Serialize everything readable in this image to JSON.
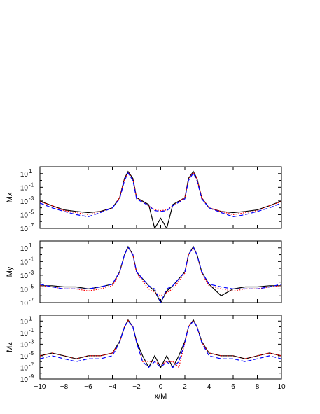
{
  "chart_data": {
    "type": "line",
    "x_range": [
      -10,
      10
    ],
    "x_ticks": [
      "−10",
      "−8",
      "−6",
      "−4",
      "−2",
      "0",
      "2",
      "4",
      "6",
      "8",
      "10"
    ],
    "xlabel": "x/M",
    "log_y": true,
    "series_styles": [
      {
        "color": "#000000",
        "dash": "solid"
      },
      {
        "color": "#ff0000",
        "dash": "dotted"
      },
      {
        "color": "#0000ff",
        "dash": "dashed"
      }
    ],
    "panels": [
      {
        "ylabel": "Mx",
        "ylim_log10": [
          -7,
          2
        ],
        "y_ticks": [
          {
            "exp": 1,
            "base": "10",
            "sup": "1"
          },
          {
            "exp": -1,
            "base": "10",
            "sup": "-1"
          },
          {
            "exp": -3,
            "base": "10",
            "sup": "-3"
          },
          {
            "exp": -5,
            "base": "10",
            "sup": "-5"
          },
          {
            "exp": -7,
            "base": "10",
            "sup": "-7"
          }
        ],
        "x": [
          -10,
          -9,
          -8,
          -7,
          -6,
          -5,
          -4,
          -3.4,
          -3,
          -2.7,
          -2.3,
          -2,
          -1,
          -0.5,
          0,
          0.5,
          1,
          2,
          2.3,
          2.7,
          3,
          3.4,
          4,
          5,
          6,
          7,
          8,
          9,
          10
        ],
        "series": [
          {
            "values": [
              0.001,
              0.0002,
              5e-05,
              3e-05,
              2e-05,
              3e-05,
              0.0001,
              0.003,
              2,
              20,
              2,
              0.003,
              0.0003,
              1e-07,
              3e-06,
              1e-07,
              0.0003,
              0.003,
              2,
              20,
              2,
              0.003,
              0.0001,
              3e-05,
              2e-05,
              3e-05,
              5e-05,
              0.0002,
              0.001
            ]
          },
          {
            "values": [
              0.0008,
              0.0002,
              4e-05,
              2e-05,
              1e-05,
              3e-05,
              0.0001,
              0.003,
              1.5,
              15,
              1.5,
              0.003,
              0.0002,
              5e-05,
              4e-05,
              5e-05,
              0.0002,
              0.003,
              1.5,
              15,
              1.5,
              0.003,
              0.0001,
              3e-05,
              1e-05,
              2e-05,
              4e-05,
              0.0002,
              0.0008
            ]
          },
          {
            "values": [
              0.0005,
              0.0001,
              3e-05,
              1e-05,
              5e-06,
              2e-05,
              0.0001,
              0.002,
              1,
              12,
              1,
              0.002,
              0.0002,
              4e-05,
              3e-05,
              4e-05,
              0.0002,
              0.002,
              1,
              12,
              1,
              0.002,
              0.0001,
              2e-05,
              5e-06,
              1e-05,
              3e-05,
              0.0001,
              0.0005
            ]
          }
        ]
      },
      {
        "ylabel": "My",
        "ylim_log10": [
          -7,
          2
        ],
        "y_ticks": [
          {
            "exp": 1,
            "base": "10",
            "sup": "1"
          },
          {
            "exp": -1,
            "base": "10",
            "sup": "-1"
          },
          {
            "exp": -3,
            "base": "10",
            "sup": "-3"
          },
          {
            "exp": -5,
            "base": "10",
            "sup": "-5"
          },
          {
            "exp": -7,
            "base": "10",
            "sup": "-7"
          }
        ],
        "x": [
          -10,
          -9,
          -8,
          -7,
          -6,
          -5,
          -4,
          -3.4,
          -3,
          -2.7,
          -2.3,
          -2,
          -1,
          -0.5,
          0,
          0.5,
          1,
          2,
          2.3,
          2.7,
          3,
          3.4,
          4,
          5,
          6,
          7,
          8,
          9,
          10
        ],
        "series": [
          {
            "values": [
              3e-05,
              3e-05,
              2e-05,
              2e-05,
              1e-05,
              2e-05,
              5e-05,
              0.003,
              1,
              15,
              1,
              0.003,
              3e-05,
              5e-06,
              1e-07,
              5e-06,
              3e-05,
              0.003,
              1,
              15,
              1,
              0.003,
              5e-05,
              1e-06,
              1e-05,
              2e-05,
              2e-05,
              3e-05,
              3e-05
            ]
          },
          {
            "values": [
              3e-05,
              2e-05,
              1e-05,
              1e-05,
              5e-06,
              1e-05,
              3e-05,
              0.002,
              1,
              10,
              1,
              0.002,
              1e-05,
              3e-06,
              1e-06,
              3e-06,
              1e-05,
              0.002,
              1,
              10,
              1,
              0.002,
              3e-05,
              1e-05,
              5e-06,
              1e-05,
              1e-05,
              2e-05,
              3e-05
            ]
          },
          {
            "values": [
              5e-05,
              2e-05,
              1e-05,
              1e-05,
              1e-05,
              2e-05,
              5e-05,
              0.003,
              1,
              12,
              1,
              0.003,
              3e-05,
              1e-05,
              1e-07,
              1e-05,
              3e-05,
              0.003,
              1,
              12,
              1,
              0.003,
              5e-05,
              2e-05,
              1e-05,
              1e-05,
              1e-05,
              2e-05,
              5e-05
            ]
          }
        ]
      },
      {
        "ylabel": "Mz",
        "ylim_log10": [
          -9,
          2
        ],
        "y_ticks": [
          {
            "exp": 1,
            "base": "10",
            "sup": "1"
          },
          {
            "exp": -1,
            "base": "10",
            "sup": "-1"
          },
          {
            "exp": -3,
            "base": "10",
            "sup": "-3"
          },
          {
            "exp": -5,
            "base": "10",
            "sup": "-5"
          },
          {
            "exp": -7,
            "base": "10",
            "sup": "-7"
          },
          {
            "exp": -9,
            "base": "10",
            "sup": "-9"
          }
        ],
        "x": [
          -10,
          -9,
          -8,
          -7,
          -6,
          -5,
          -4,
          -3.4,
          -3,
          -2.7,
          -2.3,
          -2,
          -1.5,
          -1,
          -0.5,
          0,
          0.5,
          1,
          1.5,
          2,
          2.3,
          2.7,
          3,
          3.4,
          4,
          5,
          6,
          7,
          8,
          9,
          10
        ],
        "series": [
          {
            "values": [
              1e-05,
              3e-05,
              1e-05,
              3e-06,
              1e-05,
              1e-05,
              3e-05,
              0.003,
              1,
              15,
              1,
              0.003,
              1e-05,
              1e-07,
              1e-05,
              1e-07,
              1e-05,
              1e-07,
              1e-05,
              0.003,
              1,
              15,
              1,
              0.003,
              3e-05,
              1e-05,
              1e-05,
              3e-06,
              1e-05,
              3e-05,
              1e-05
            ]
          },
          {
            "values": [
              1e-05,
              3e-05,
              1e-05,
              3e-06,
              1e-05,
              1e-05,
              3e-05,
              0.002,
              1,
              12,
              1,
              0.002,
              1e-06,
              1e-06,
              1e-06,
              3e-07,
              1e-06,
              1e-06,
              1e-07,
              0.002,
              1,
              12,
              1,
              0.002,
              3e-05,
              1e-05,
              1e-05,
              3e-06,
              1e-05,
              3e-05,
              1e-05
            ]
          },
          {
            "values": [
              3e-06,
              1e-05,
              3e-06,
              1e-06,
              3e-06,
              3e-06,
              1e-05,
              0.002,
              1,
              10,
              1,
              0.002,
              1e-06,
              1e-07,
              1e-06,
              1e-07,
              1e-06,
              1e-07,
              1e-06,
              0.002,
              1,
              10,
              1,
              0.002,
              1e-05,
              3e-06,
              3e-06,
              1e-06,
              3e-06,
              1e-05,
              3e-06
            ]
          }
        ]
      }
    ]
  }
}
